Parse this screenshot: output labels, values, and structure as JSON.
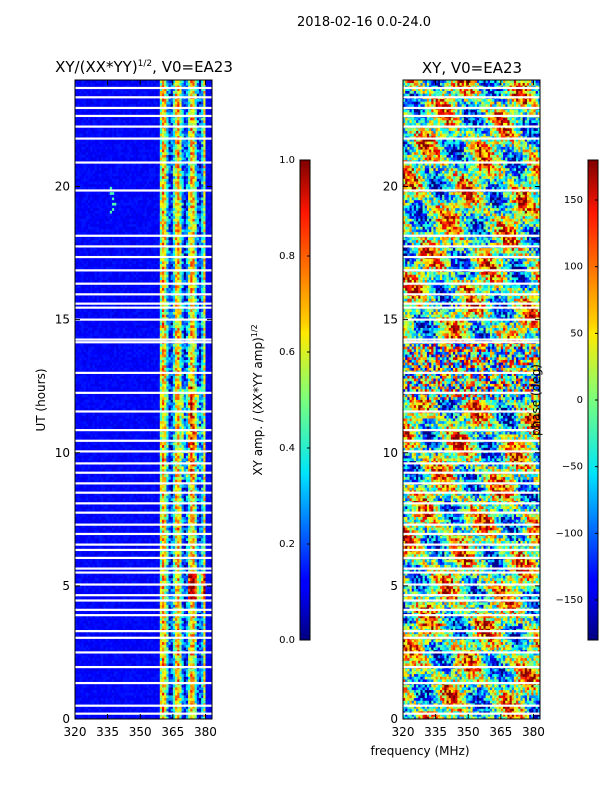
{
  "chart_data": {
    "suptitle": "2018-02-16 0.0-24.0",
    "shared_xlabel": "frequency (MHz)",
    "panels": [
      {
        "id": "amplitude",
        "type": "heatmap",
        "title_main": "XY/(XX*YY)",
        "title_exp": "1/2",
        "title_suffix": ", V0=EA23",
        "ylabel": "UT (hours)",
        "xlim": [
          320,
          383
        ],
        "ylim": [
          0,
          24
        ],
        "xticks": [
          320,
          335,
          350,
          365,
          380
        ],
        "xtick_labels": [
          "320",
          "335",
          "350",
          "365",
          "380"
        ],
        "yticks": [
          0,
          5,
          10,
          15,
          20
        ],
        "ytick_labels": [
          "0",
          "5",
          "10",
          "15",
          "20"
        ],
        "colormap": "jet",
        "notes": "Mostly low amplitude (dark blue) below ~359 MHz; bright bands 359-378 MHz"
      },
      {
        "id": "phase",
        "type": "heatmap",
        "title_main": "XY, V0=EA23",
        "ylabel": "",
        "xlim": [
          320,
          383
        ],
        "ylim": [
          0,
          24
        ],
        "xticks": [
          320,
          335,
          350,
          365,
          380
        ],
        "xtick_labels": [
          "320",
          "335",
          "350",
          "365",
          "380"
        ],
        "yticks": [
          0,
          5,
          10,
          15,
          20
        ],
        "ytick_labels": [
          "0",
          "5",
          "10",
          "15",
          "20"
        ],
        "colormap": "jet",
        "notes": "Phase values spanning full range, fragmented structure"
      }
    ],
    "colorbars": [
      {
        "id": "amp-colorbar",
        "label_main": "XY amp. / (XX*YY amp)",
        "label_exp": "1/2",
        "range": [
          0.0,
          1.0
        ],
        "ticks": [
          0.0,
          0.2,
          0.4,
          0.6,
          0.8,
          1.0
        ],
        "tick_labels": [
          "0.0",
          "0.2",
          "0.4",
          "0.6",
          "0.8",
          "1.0"
        ]
      },
      {
        "id": "phase-colorbar",
        "label_main": "phase (deg)",
        "range": [
          -180,
          180
        ],
        "ticks": [
          -150,
          -100,
          -50,
          0,
          50,
          100,
          150
        ],
        "tick_labels": [
          "−150",
          "−100",
          "−50",
          "0",
          "50",
          "100",
          "150"
        ]
      }
    ],
    "flagged_rows_ut": [
      0.2,
      0.5,
      1.35,
      1.95,
      2.5,
      3.05,
      3.3,
      3.9,
      4.1,
      4.45,
      4.65,
      5.05,
      5.5,
      5.65,
      6.05,
      6.35,
      6.55,
      6.95,
      7.3,
      7.75,
      8.1,
      8.5,
      8.85,
      9.25,
      9.6,
      10.05,
      10.45,
      10.85,
      11.55,
      12.25,
      13.0,
      14.15,
      14.25,
      15.0,
      15.45,
      15.6,
      15.95,
      16.35,
      16.85,
      17.35,
      17.75,
      18.15,
      19.85,
      20.9,
      21.8,
      22.25,
      22.65,
      22.95,
      23.35,
      23.7
    ]
  }
}
